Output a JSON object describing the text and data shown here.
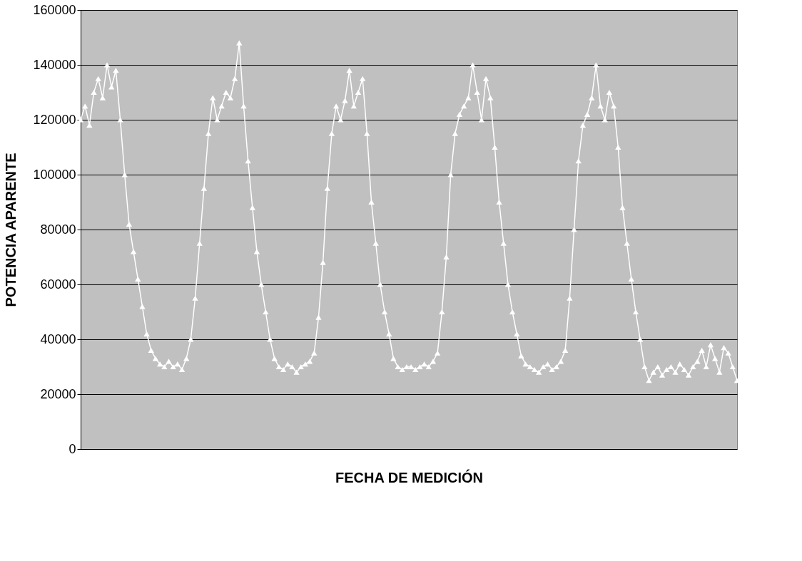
{
  "chart_data": {
    "type": "line",
    "xlabel": "FECHA DE MEDICIÓN",
    "ylabel": "POTENCIA APARENTE",
    "categories": [
      null,
      null,
      null,
      null,
      null,
      null,
      null,
      null,
      null,
      null,
      null,
      null,
      null,
      null,
      null,
      null,
      null,
      null,
      null,
      null,
      null,
      null,
      null,
      null,
      null,
      null,
      null,
      null,
      null,
      null,
      null,
      null,
      null,
      null,
      null,
      null,
      null,
      null,
      null,
      null,
      null,
      null,
      null,
      null,
      null,
      null,
      null,
      null,
      null,
      null,
      null,
      null,
      null,
      null,
      null,
      null,
      null,
      null,
      null,
      null,
      null,
      null,
      null,
      null,
      null,
      null,
      null,
      null,
      null,
      null,
      null,
      null,
      null,
      null,
      null,
      null,
      null,
      null,
      null,
      null,
      null,
      null,
      null,
      null,
      null,
      null,
      null,
      null,
      null,
      null,
      null,
      null,
      null,
      null,
      null,
      null,
      null,
      null,
      null,
      null,
      null,
      null,
      null,
      null,
      null,
      null,
      null,
      null,
      null,
      null,
      null,
      null,
      null,
      null,
      null,
      null,
      null,
      null,
      null,
      null,
      null,
      null,
      null,
      null,
      null,
      null,
      null,
      null,
      null,
      null,
      null,
      null,
      null,
      null,
      null,
      null,
      null,
      null,
      null,
      null,
      null,
      null,
      null,
      null,
      null,
      null,
      null,
      null,
      null,
      null
    ],
    "series": [
      {
        "color": "#ffffff",
        "values": [
          120000,
          125000,
          118000,
          130000,
          135000,
          128000,
          140000,
          132000,
          138000,
          120000,
          100000,
          82000,
          72000,
          62000,
          52000,
          42000,
          36000,
          33000,
          31000,
          30000,
          32000,
          30000,
          31000,
          29000,
          33000,
          40000,
          55000,
          75000,
          95000,
          115000,
          128000,
          120000,
          125000,
          130000,
          128000,
          135000,
          148000,
          125000,
          105000,
          88000,
          72000,
          60000,
          50000,
          40000,
          33000,
          30000,
          29000,
          31000,
          30000,
          28000,
          30000,
          31000,
          32000,
          35000,
          48000,
          68000,
          95000,
          115000,
          125000,
          120000,
          127000,
          138000,
          125000,
          130000,
          135000,
          115000,
          90000,
          75000,
          60000,
          50000,
          42000,
          33000,
          30000,
          29000,
          30000,
          30000,
          29000,
          30000,
          31000,
          30000,
          32000,
          35000,
          50000,
          70000,
          100000,
          115000,
          122000,
          125000,
          128000,
          140000,
          130000,
          120000,
          135000,
          128000,
          110000,
          90000,
          75000,
          60000,
          50000,
          42000,
          34000,
          31000,
          30000,
          29000,
          28000,
          30000,
          31000,
          29000,
          30000,
          32000,
          36000,
          55000,
          80000,
          105000,
          118000,
          122000,
          128000,
          140000,
          125000,
          120000,
          130000,
          125000,
          110000,
          88000,
          75000,
          62000,
          50000,
          40000,
          30000,
          25000,
          28000,
          30000,
          27000,
          29000,
          30000,
          28000,
          31000,
          29000,
          27000,
          30000,
          32000,
          36000,
          30000,
          38000,
          33000,
          28000,
          37000,
          35000,
          30000,
          25000
        ]
      }
    ],
    "ylim": [
      0,
      160000
    ],
    "yticks": [
      0,
      20000,
      40000,
      60000,
      80000,
      100000,
      120000,
      140000,
      160000
    ],
    "grid": "y",
    "legend": false,
    "marker": "triangle",
    "line_style": "solid",
    "tick_labels": "y"
  }
}
